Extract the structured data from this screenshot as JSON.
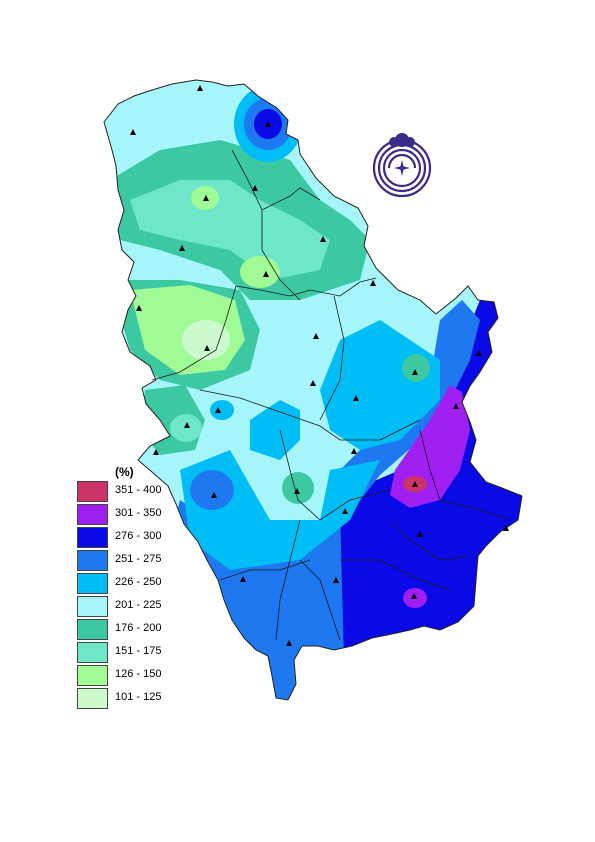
{
  "legend": {
    "unit": "(%)",
    "classes": [
      {
        "label": "351 - 400",
        "color": "#cc3366"
      },
      {
        "label": "301 - 350",
        "color": "#9f20f0"
      },
      {
        "label": "276 - 300",
        "color": "#0a0ae6"
      },
      {
        "label": "251 - 275",
        "color": "#1e78f0"
      },
      {
        "label": "226 - 250",
        "color": "#00bef5"
      },
      {
        "label": "201 - 225",
        "color": "#a5f5fa"
      },
      {
        "label": "176 - 200",
        "color": "#3cc8a0"
      },
      {
        "label": "151 - 175",
        "color": "#6ee6c8"
      },
      {
        "label": "126 - 150",
        "color": "#a0fa96"
      },
      {
        "label": "101 - 125",
        "color": "#cdfacd"
      }
    ]
  },
  "map": {
    "subject": "Serbia",
    "station_marker": "triangle-icon",
    "logo": "hydrometeorological-service-logo-icon"
  }
}
